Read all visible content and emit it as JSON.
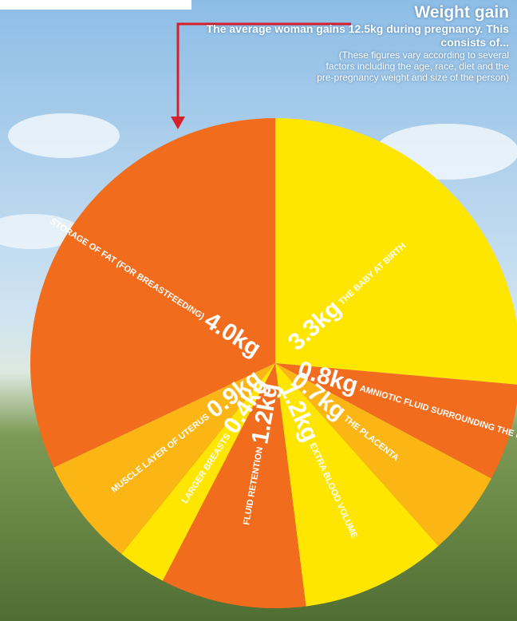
{
  "chart_data": {
    "type": "pie",
    "title": "Weight gain",
    "subtitle": "The average woman gains 12.5kg during pregnancy. This consists of...",
    "note": "(These figures vary according to several factors including the age, race, diet and the pre-pregnancy weight and size of the person)",
    "categories": [
      "THE BABY AT BIRTH",
      "AMNIOTIC FLUID SURROUNDING THE FETUS",
      "THE PLACENTA",
      "EXTRA BLOOD VOLUME",
      "FLUID RETENTION",
      "LARGER BREASTS",
      "MUSCLE LAYER OF UTERUS",
      "STORAGE OF FAT (FOR BREASTFEEDING)"
    ],
    "values": [
      3.3,
      0.8,
      0.7,
      1.2,
      1.2,
      0.4,
      0.9,
      4.0
    ],
    "value_labels": [
      "3.3kg",
      "0.8kg",
      "0.7kg",
      "1.2kg",
      "1.2kg",
      "0.4kg",
      "0.9kg",
      "4.0kg"
    ],
    "colors": [
      "#ffe600",
      "#f26c1e",
      "#fbb514",
      "#ffe600",
      "#f26c1e",
      "#ffe600",
      "#fbb514",
      "#f26c1e"
    ]
  }
}
